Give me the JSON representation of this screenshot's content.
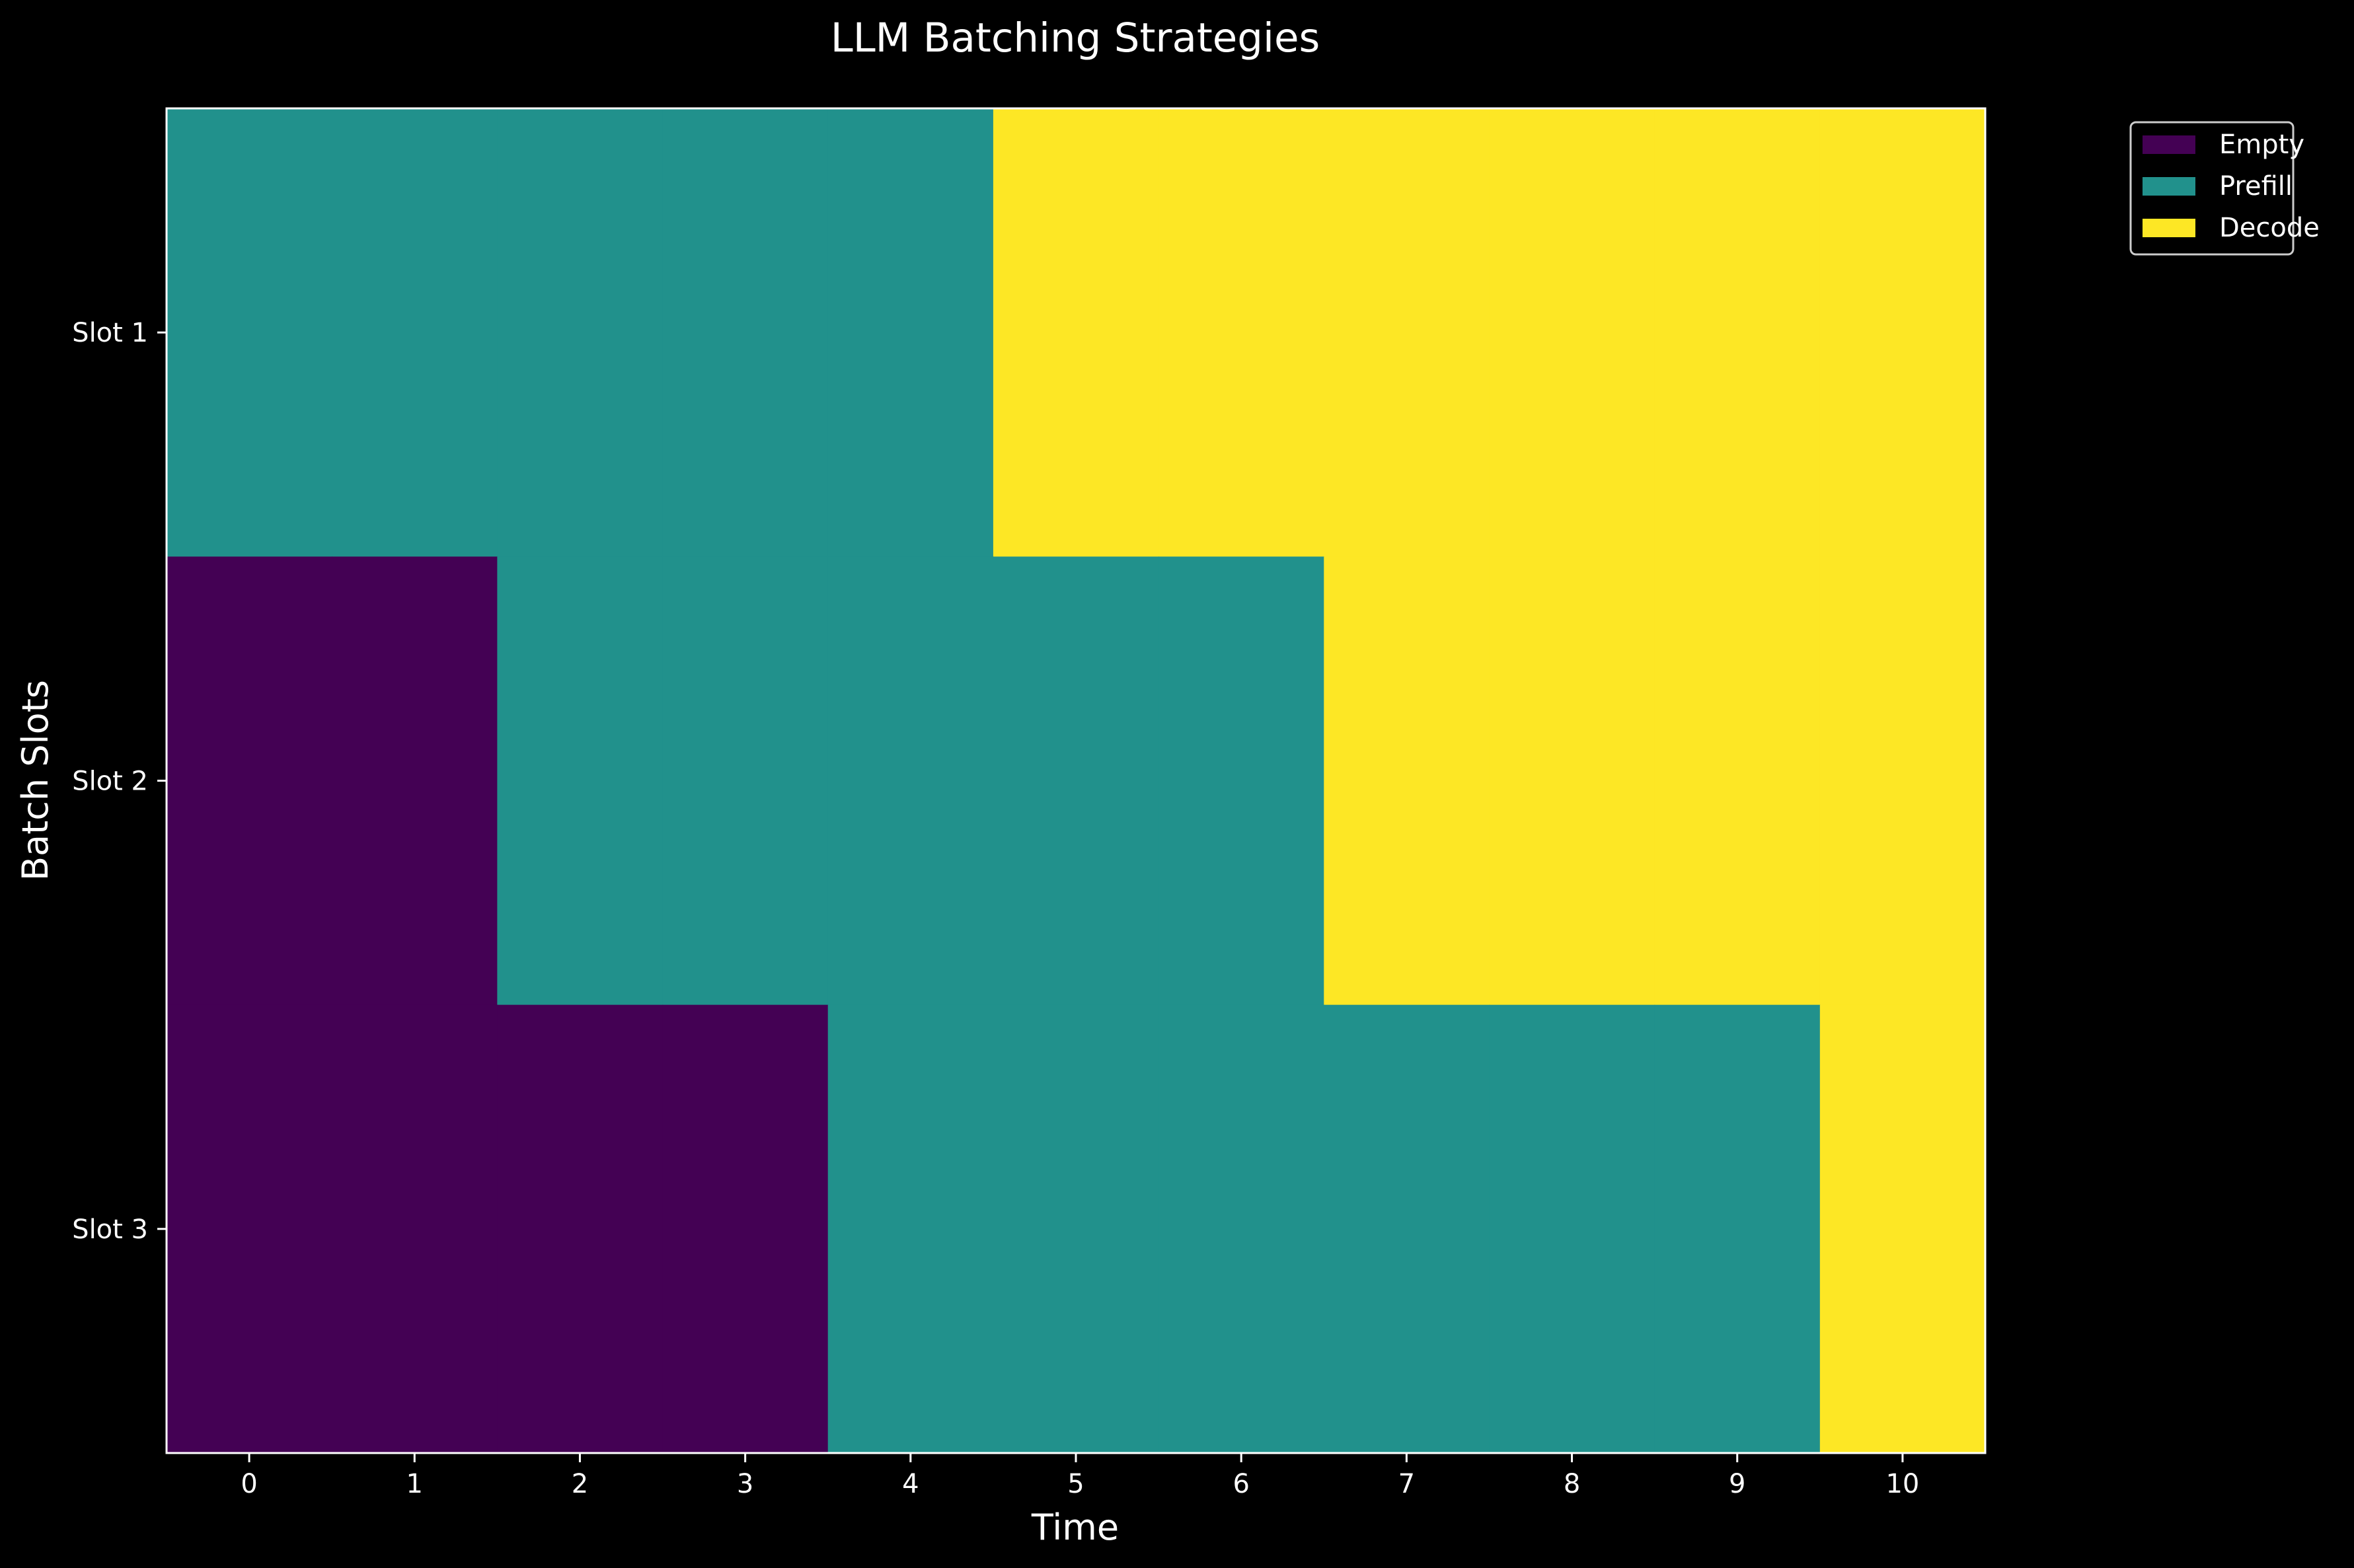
{
  "chart_data": {
    "type": "heatmap",
    "title": "LLM Batching Strategies",
    "xlabel": "Time",
    "ylabel": "Batch Slots",
    "x": [
      0,
      1,
      2,
      3,
      4,
      5,
      6,
      7,
      8,
      9,
      10
    ],
    "rows": [
      "Slot 1",
      "Slot 2",
      "Slot 3"
    ],
    "states": [
      {
        "name": "Empty",
        "value": 0,
        "color": "#440154"
      },
      {
        "name": "Prefill",
        "value": 1,
        "color": "#21918c"
      },
      {
        "name": "Decode",
        "value": 2,
        "color": "#fde725"
      }
    ],
    "values": [
      [
        1,
        1,
        1,
        1,
        1,
        2,
        2,
        2,
        2,
        2,
        2
      ],
      [
        0,
        0,
        1,
        1,
        1,
        1,
        1,
        2,
        2,
        2,
        2
      ],
      [
        0,
        0,
        0,
        0,
        1,
        1,
        1,
        1,
        1,
        1,
        2
      ]
    ],
    "grid": false,
    "legend_position": "outside-top-right",
    "background_color": "#000000",
    "axis_color": "#ffffff"
  }
}
